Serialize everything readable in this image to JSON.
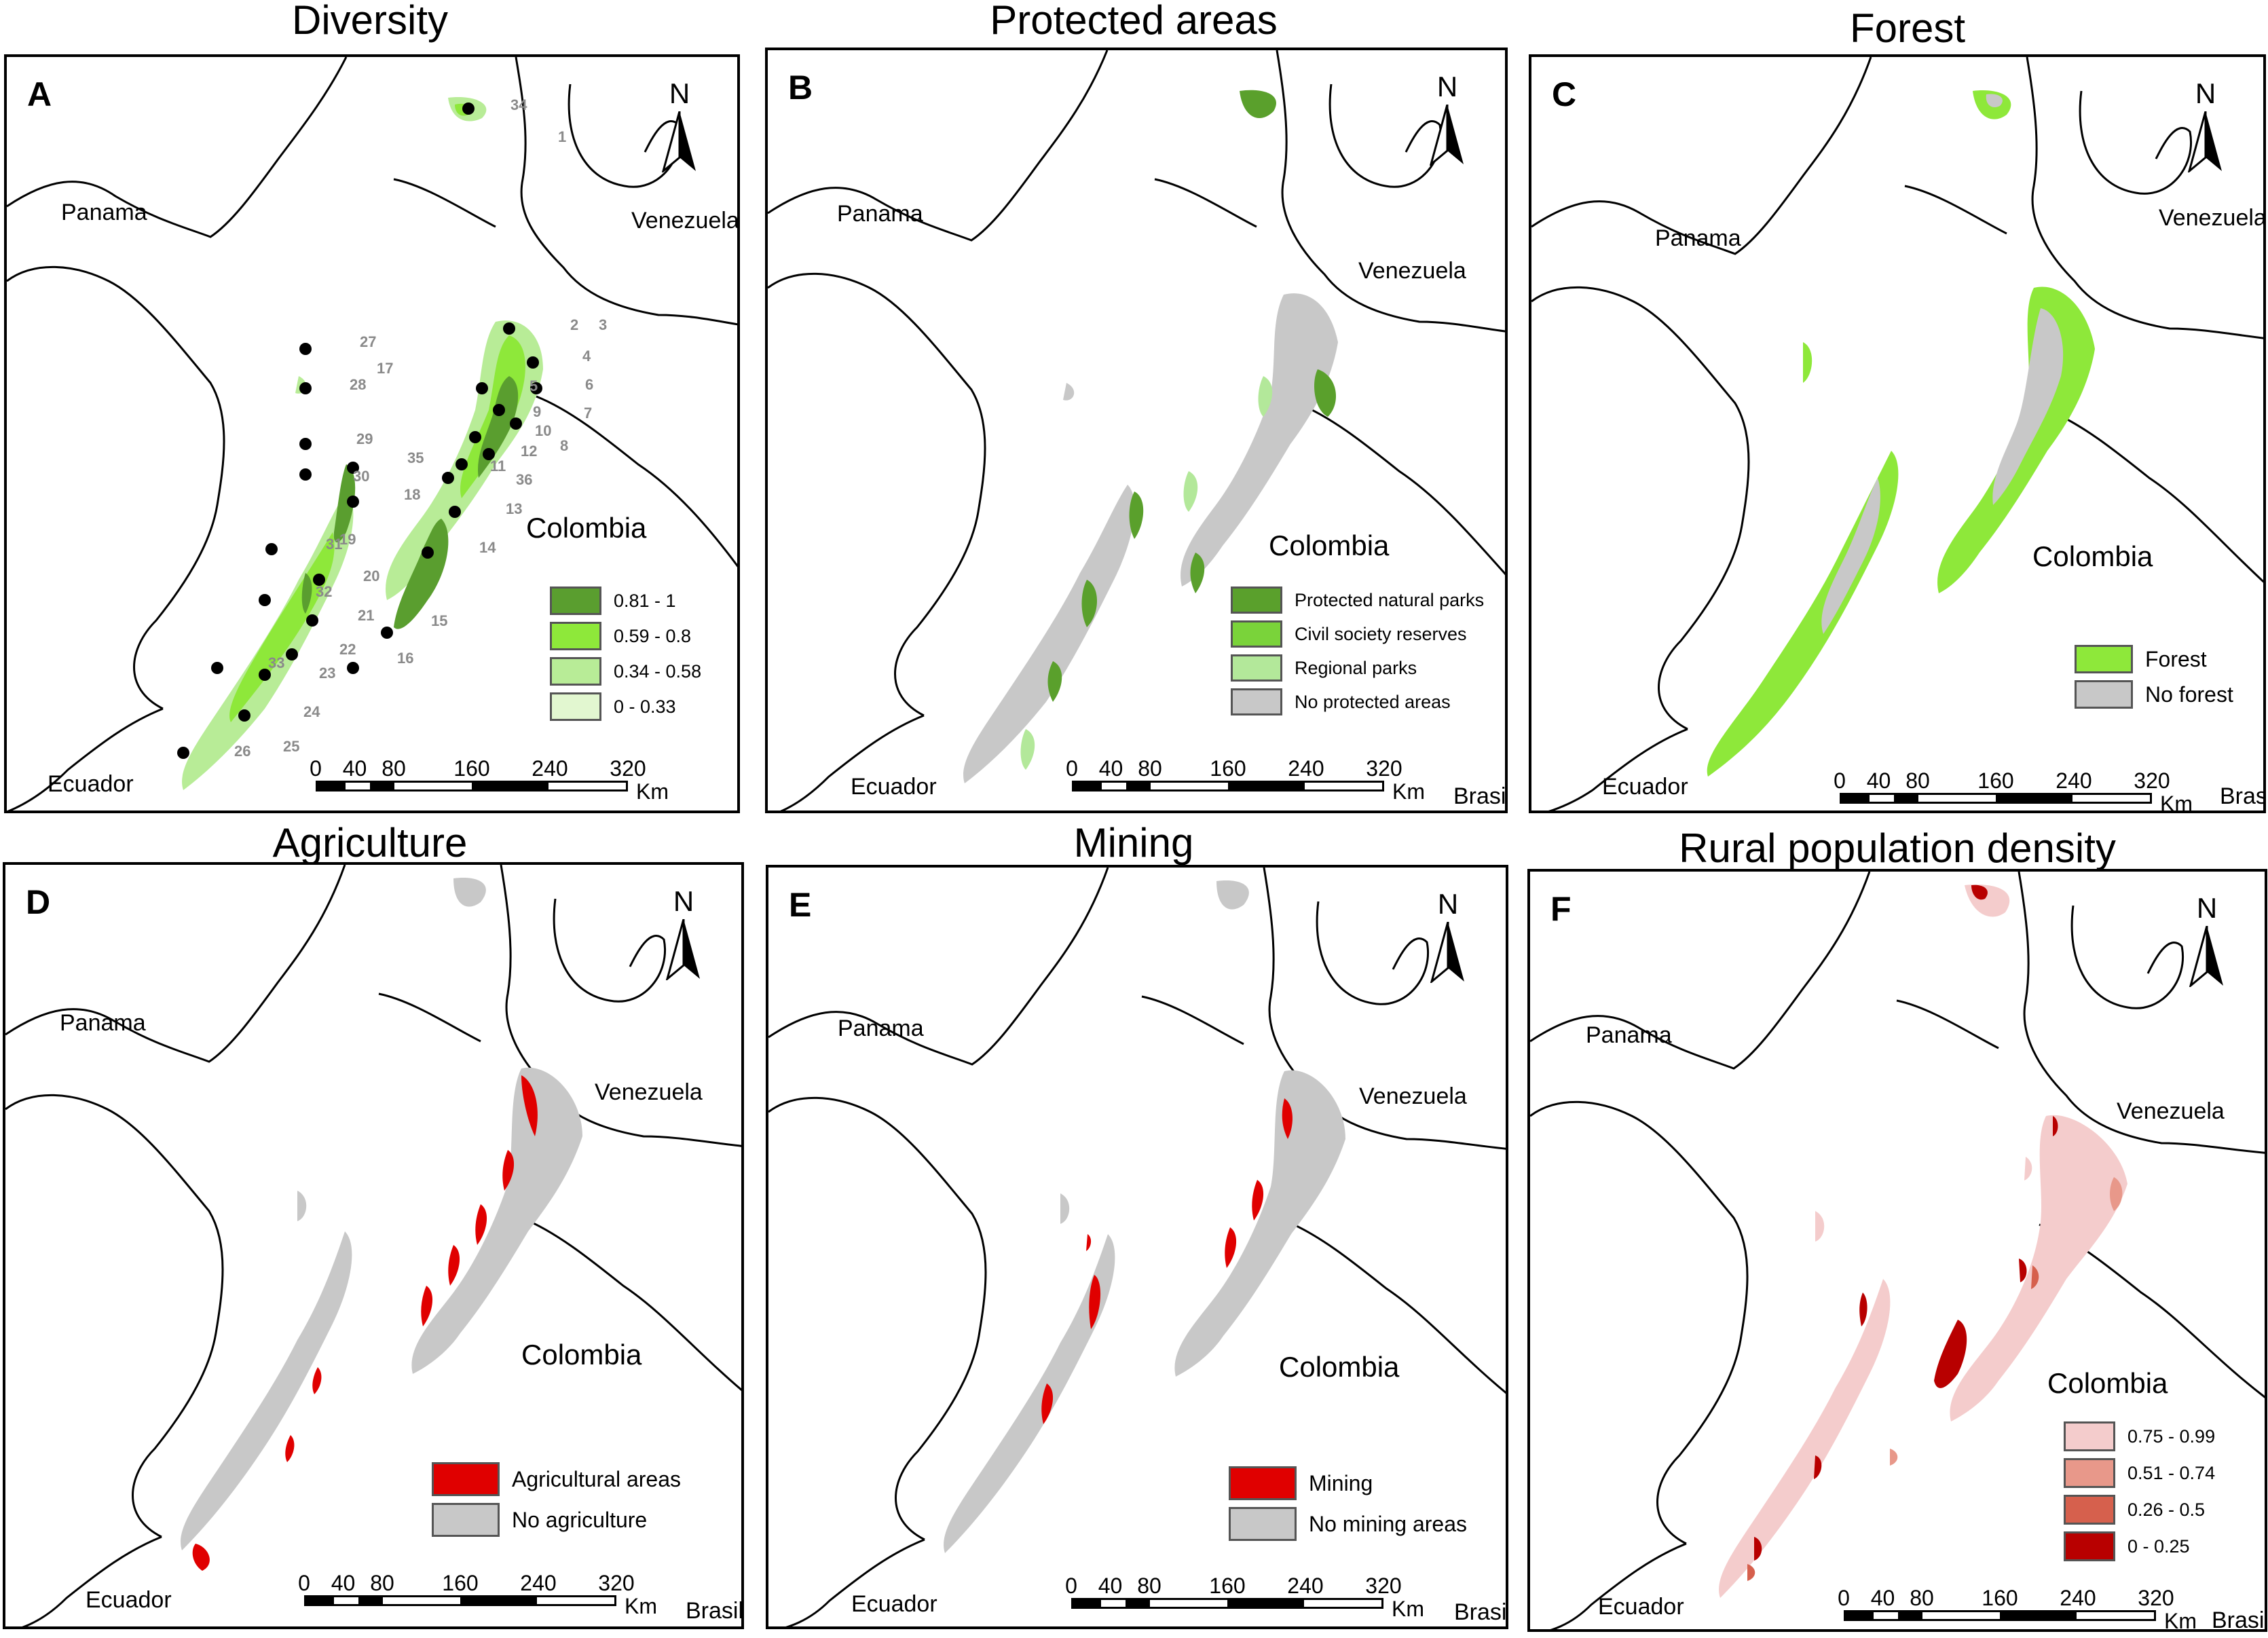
{
  "panels": [
    {
      "letter": "A",
      "title": "Diversity",
      "countries": {
        "panama": "Panama",
        "venezuela": "Venezuela",
        "colombia": "Colombia",
        "ecuador": "Ecuador",
        "brasil": ""
      },
      "legend": [
        {
          "label": "0.81 - 1",
          "color": "#5a9e2f"
        },
        {
          "label": "0.59 - 0.8",
          "color": "#8ee83a"
        },
        {
          "label": "0.34 - 0.58",
          "color": "#b8ec97"
        },
        {
          "label": "0 - 0.33",
          "color": "#e2f7d0"
        }
      ]
    },
    {
      "letter": "B",
      "title": "Protected areas",
      "countries": {
        "panama": "Panama",
        "venezuela": "Venezuela",
        "colombia": "Colombia",
        "ecuador": "Ecuador",
        "brasil": "Brasil"
      },
      "legend": [
        {
          "label": "Protected natural parks",
          "color": "#5aa02c"
        },
        {
          "label": "Civil society reserves",
          "color": "#7ad33a"
        },
        {
          "label": "Regional parks",
          "color": "#b3e89a"
        },
        {
          "label": "No protected areas",
          "color": "#c8c8c8"
        }
      ]
    },
    {
      "letter": "C",
      "title": "Forest",
      "countries": {
        "panama": "Panama",
        "venezuela": "Venezuela",
        "colombia": "Colombia",
        "ecuador": "Ecuador",
        "brasil": "Brasil"
      },
      "legend": [
        {
          "label": "Forest",
          "color": "#8ee83a"
        },
        {
          "label": "No forest",
          "color": "#c8c8c8"
        }
      ]
    },
    {
      "letter": "D",
      "title": "Agriculture",
      "countries": {
        "panama": "Panama",
        "venezuela": "Venezuela",
        "colombia": "Colombia",
        "ecuador": "Ecuador",
        "brasil": "Brasil"
      },
      "legend": [
        {
          "label": "Agricultural areas",
          "color": "#e00000"
        },
        {
          "label": "No agriculture",
          "color": "#c8c8c8"
        }
      ]
    },
    {
      "letter": "E",
      "title": "Mining",
      "countries": {
        "panama": "Panama",
        "venezuela": "Venezuela",
        "colombia": "Colombia",
        "ecuador": "Ecuador",
        "brasil": "Brasil"
      },
      "legend": [
        {
          "label": "Mining",
          "color": "#e00000"
        },
        {
          "label": "No mining areas",
          "color": "#c8c8c8"
        }
      ]
    },
    {
      "letter": "F",
      "title": "Rural population density",
      "countries": {
        "panama": "Panama",
        "venezuela": "Venezuela",
        "colombia": "Colombia",
        "ecuador": "Ecuador",
        "brasil": "Brasil"
      },
      "legend": [
        {
          "label": "0.75 - 0.99",
          "color": "#f4cccc"
        },
        {
          "label": "0.51 - 0.74",
          "color": "#e8988a"
        },
        {
          "label": "0.26 - 0.5",
          "color": "#d6604d"
        },
        {
          "label": "0 - 0.25",
          "color": "#b80000"
        }
      ]
    }
  ],
  "north_label": "N",
  "scale": {
    "ticks": [
      "0",
      "40",
      "80",
      "160",
      "240",
      "320"
    ],
    "unit": "Km"
  },
  "site_labels": [
    "1",
    "2",
    "3",
    "4",
    "5",
    "6",
    "7",
    "8",
    "9",
    "10",
    "11",
    "12",
    "13",
    "14",
    "15",
    "16",
    "17",
    "18",
    "19",
    "20",
    "21",
    "22",
    "23",
    "24",
    "25",
    "26",
    "27",
    "28",
    "29",
    "30",
    "31",
    "32",
    "33",
    "34",
    "35",
    "36"
  ]
}
